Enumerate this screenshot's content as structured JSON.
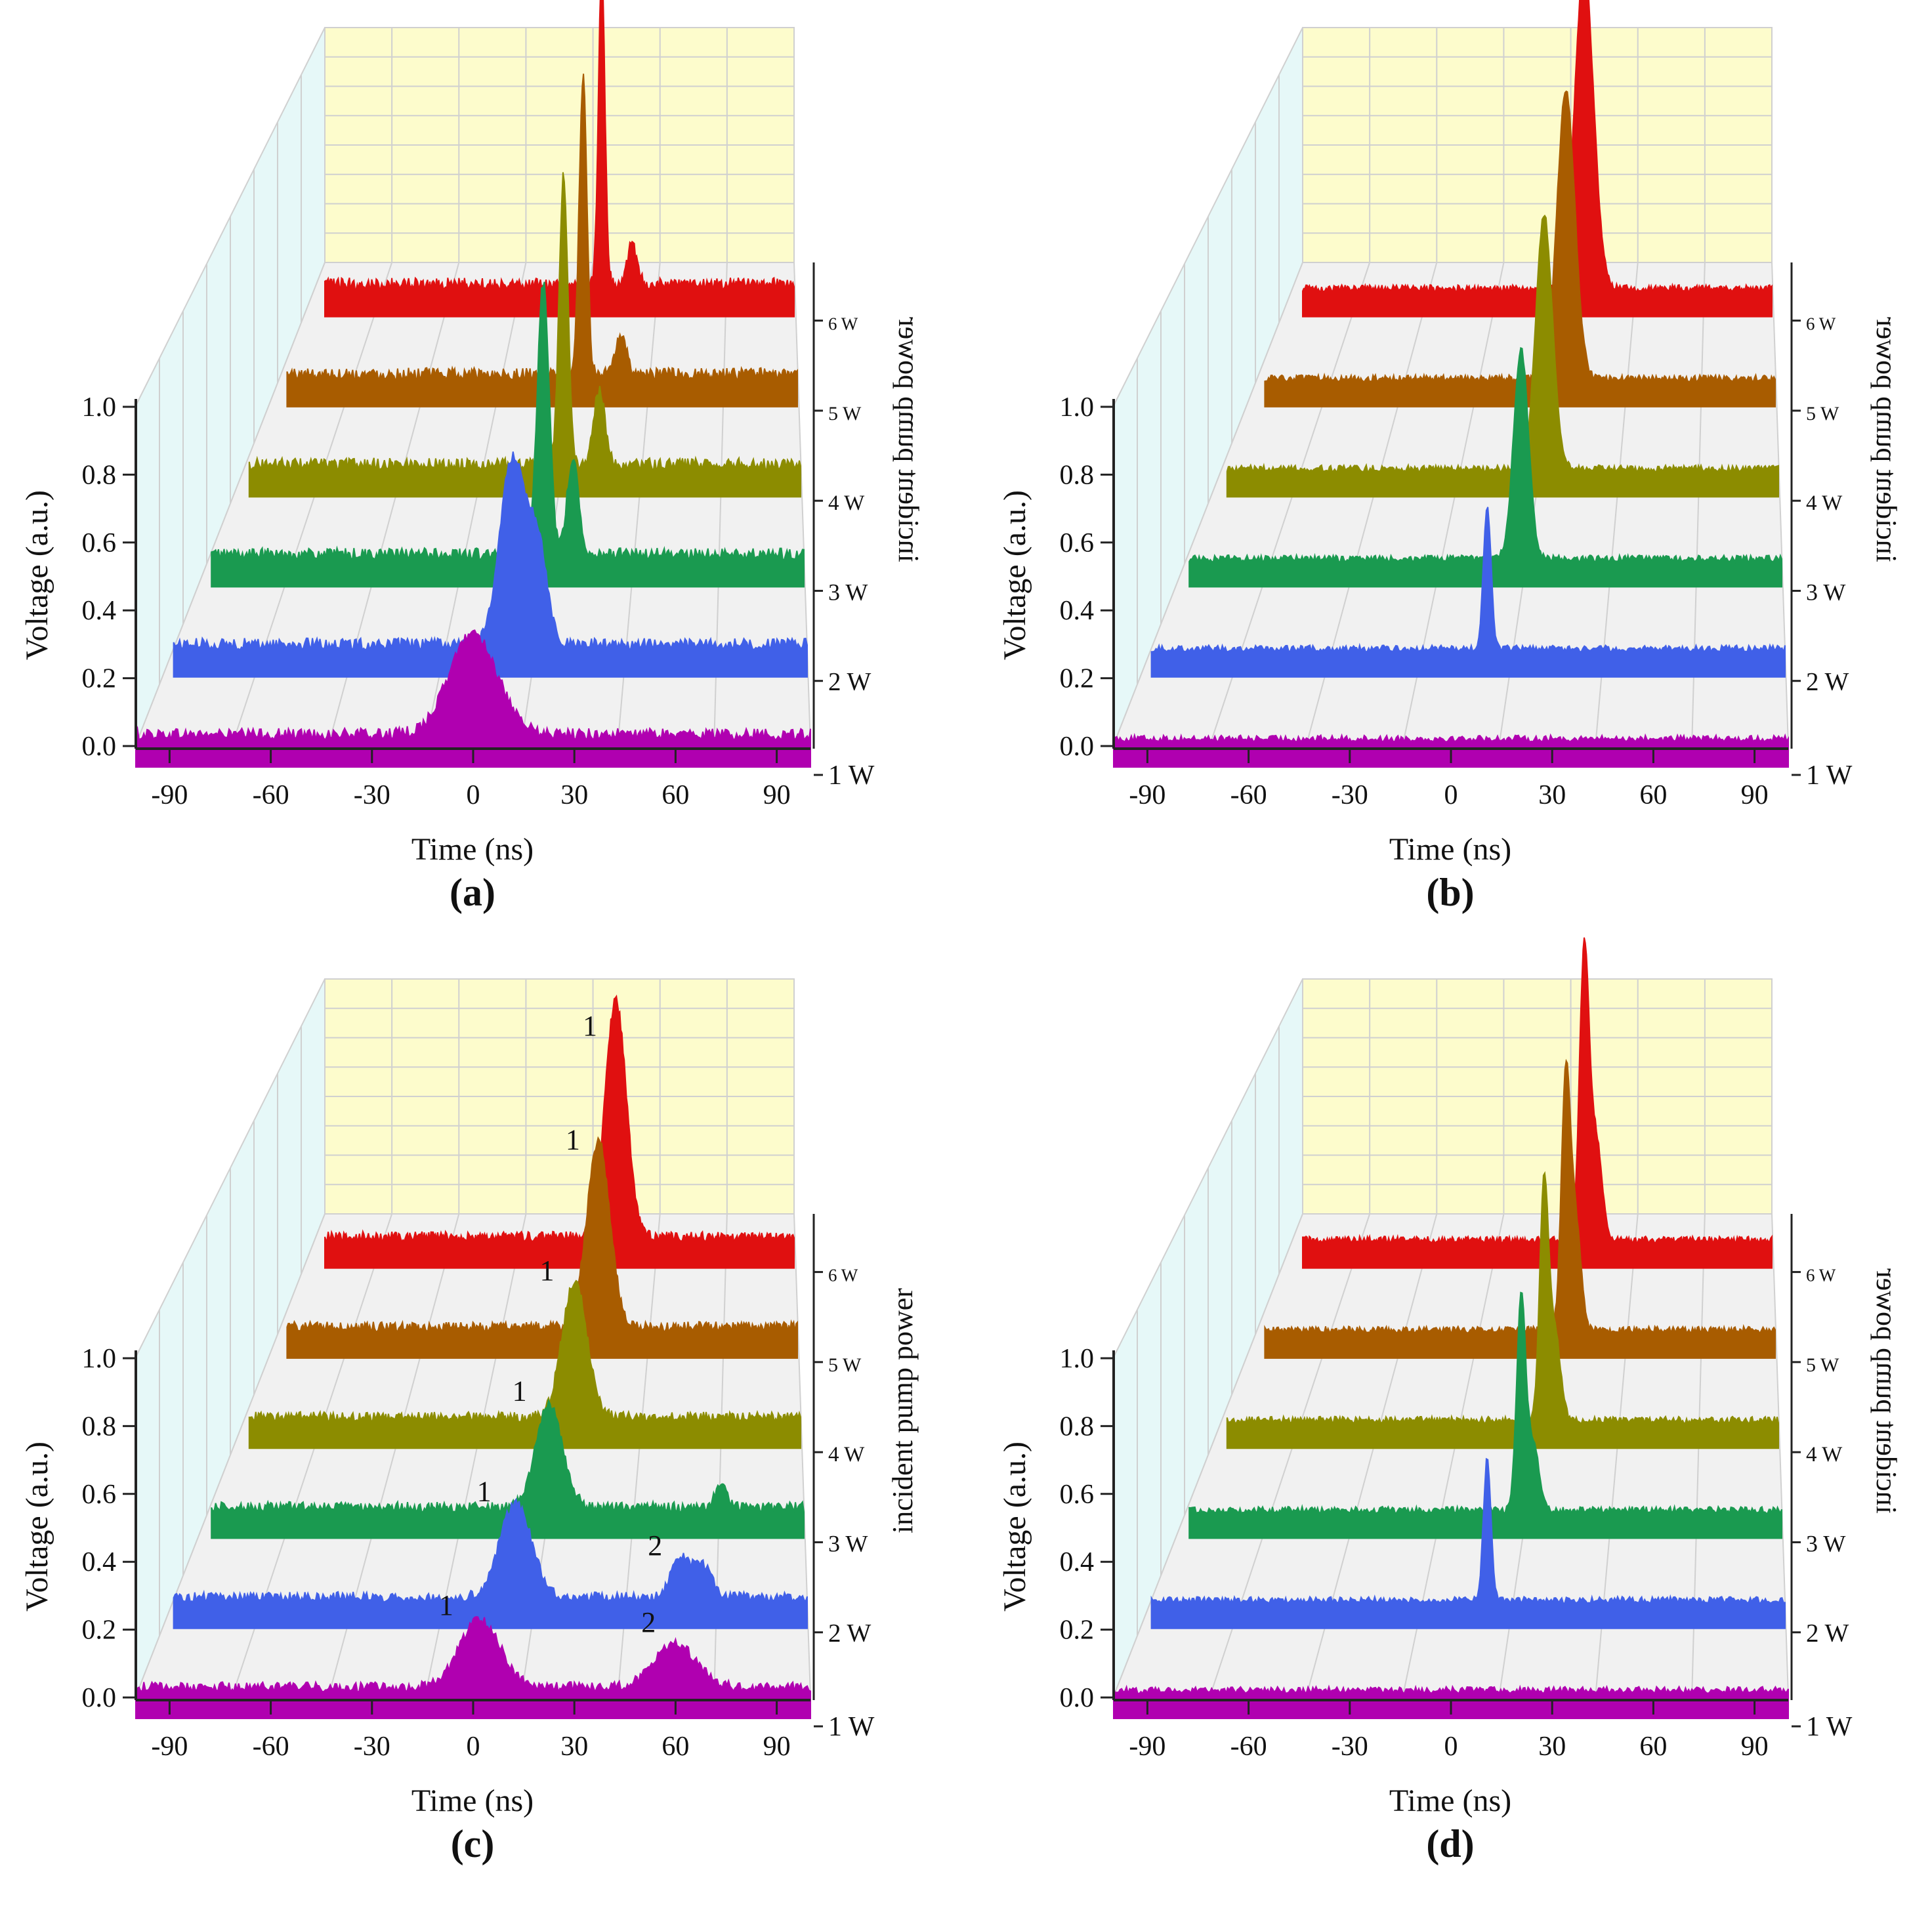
{
  "figure": {
    "colors": {
      "pump_1W": "#b000b0",
      "pump_2W": "#4060e8",
      "pump_3W": "#1a9a50",
      "pump_4W": "#8c8c00",
      "pump_5W": "#a85c00",
      "pump_6W": "#e01010",
      "back_wall": "#fdfccc",
      "side_wall": "#e6f8f8",
      "floor": "#f1f1f1",
      "grid": "#d0d0d0",
      "axis": "#222222"
    }
  },
  "chart_data": [
    {
      "type": "waterfall",
      "panel_label": "(a)",
      "xlabel": "Time (ns)",
      "ylabel": "Voltage (a.u.)",
      "zlabel": "incident pump power",
      "zlabel_style": "mirrored",
      "xlim": [
        -100,
        100
      ],
      "ylim": [
        0,
        1.0
      ],
      "xticks": [
        "-90",
        "-60",
        "-30",
        "0",
        "30",
        "60",
        "90"
      ],
      "yticks": [
        "0.0",
        "0.2",
        "0.4",
        "0.6",
        "0.8",
        "1.0"
      ],
      "z_labels": [
        "1 W",
        "2 W",
        "3 W",
        "4 W",
        "5 W",
        "6 W"
      ],
      "noise_level": 0.035,
      "series": [
        {
          "name": "1 W",
          "pulses": [
            {
              "t": 0,
              "amp": 0.3,
              "width": 7
            }
          ],
          "numbers": []
        },
        {
          "name": "2 W",
          "pulses": [
            {
              "t": 7,
              "amp": 0.55,
              "width": 4
            },
            {
              "t": 15,
              "amp": 0.28,
              "width": 3
            }
          ],
          "numbers": []
        },
        {
          "name": "3 W",
          "pulses": [
            {
              "t": 12,
              "amp": 0.8,
              "width": 2
            },
            {
              "t": 22,
              "amp": 0.28,
              "width": 2
            }
          ],
          "numbers": []
        },
        {
          "name": "4 W",
          "pulses": [
            {
              "t": 14,
              "amp": 0.85,
              "width": 1.6
            },
            {
              "t": 27,
              "amp": 0.22,
              "width": 2
            }
          ],
          "numbers": []
        },
        {
          "name": "5 W",
          "pulses": [
            {
              "t": 16,
              "amp": 0.88,
              "width": 1.5
            },
            {
              "t": 31,
              "amp": 0.12,
              "width": 2
            }
          ],
          "numbers": []
        },
        {
          "name": "6 W",
          "pulses": [
            {
              "t": 18,
              "amp": 0.92,
              "width": 1.4
            },
            {
              "t": 31,
              "amp": 0.12,
              "width": 2
            }
          ],
          "numbers": []
        }
      ]
    },
    {
      "type": "waterfall",
      "panel_label": "(b)",
      "xlabel": "Time (ns)",
      "ylabel": "Voltage (a.u.)",
      "zlabel": "incident pump power",
      "zlabel_style": "mirrored",
      "xlim": [
        -100,
        100
      ],
      "ylim": [
        0,
        1.0
      ],
      "xticks": [
        "-90",
        "-60",
        "-30",
        "0",
        "30",
        "60",
        "90"
      ],
      "yticks": [
        "0.0",
        "0.2",
        "0.4",
        "0.6",
        "0.8",
        "1.0"
      ],
      "z_labels": [
        "1 W",
        "2 W",
        "3 W",
        "4 W",
        "5 W",
        "6 W"
      ],
      "noise_level": 0.02,
      "series": [
        {
          "name": "1 W",
          "pulses": [],
          "numbers": []
        },
        {
          "name": "2 W",
          "pulses": [
            {
              "t": 6,
              "amp": 0.42,
              "width": 1.2
            }
          ],
          "numbers": []
        },
        {
          "name": "3 W",
          "pulses": [
            {
              "t": 12,
              "amp": 0.62,
              "width": 2.5
            }
          ],
          "numbers": []
        },
        {
          "name": "4 W",
          "pulses": [
            {
              "t": 15,
              "amp": 0.75,
              "width": 3
            }
          ],
          "numbers": []
        },
        {
          "name": "5 W",
          "pulses": [
            {
              "t": 18,
              "amp": 0.85,
              "width": 3.5
            }
          ],
          "numbers": []
        },
        {
          "name": "6 W",
          "pulses": [
            {
              "t": 20,
              "amp": 0.95,
              "width": 4
            }
          ],
          "numbers": []
        }
      ]
    },
    {
      "type": "waterfall",
      "panel_label": "(c)",
      "xlabel": "Time (ns)",
      "ylabel": "Voltage (a.u.)",
      "zlabel": "incident pump power",
      "zlabel_style": "normal",
      "xlim": [
        -100,
        100
      ],
      "ylim": [
        0,
        1.0
      ],
      "xticks": [
        "-90",
        "-60",
        "-30",
        "0",
        "30",
        "60",
        "90"
      ],
      "yticks": [
        "0.0",
        "0.2",
        "0.4",
        "0.6",
        "0.8",
        "1.0"
      ],
      "z_labels": [
        "1 W",
        "2 W",
        "3 W",
        "4 W",
        "5 W",
        "6 W"
      ],
      "noise_level": 0.03,
      "series": [
        {
          "name": "1 W",
          "pulses": [
            {
              "t": 2,
              "amp": 0.2,
              "width": 6
            },
            {
              "t": 60,
              "amp": 0.13,
              "width": 6
            }
          ],
          "numbers": [
            {
              "text": "1",
              "t": -8,
              "v": 0.24
            },
            {
              "text": "2",
              "t": 52,
              "v": 0.19
            }
          ]
        },
        {
          "name": "2 W",
          "pulses": [
            {
              "t": 8,
              "amp": 0.28,
              "width": 5
            },
            {
              "t": 60,
              "amp": 0.11,
              "width": 3
            },
            {
              "t": 67,
              "amp": 0.09,
              "width": 3
            }
          ],
          "numbers": [
            {
              "text": "1",
              "t": -2,
              "v": 0.31
            },
            {
              "text": "2",
              "t": 52,
              "v": 0.15
            }
          ]
        },
        {
          "name": "3 W",
          "pulses": [
            {
              "t": 14,
              "amp": 0.3,
              "width": 4.5
            },
            {
              "t": 72,
              "amp": 0.06,
              "width": 2
            }
          ],
          "numbers": [
            {
              "text": "1",
              "t": 4,
              "v": 0.34
            }
          ]
        },
        {
          "name": "4 W",
          "pulses": [
            {
              "t": 18,
              "amp": 0.4,
              "width": 4.5
            }
          ],
          "numbers": [
            {
              "text": "1",
              "t": 8,
              "v": 0.43
            }
          ]
        },
        {
          "name": "5 W",
          "pulses": [
            {
              "t": 22,
              "amp": 0.55,
              "width": 4.5
            }
          ],
          "numbers": [
            {
              "text": "1",
              "t": 12,
              "v": 0.55
            }
          ]
        },
        {
          "name": "6 W",
          "pulses": [
            {
              "t": 24,
              "amp": 0.7,
              "width": 4.5
            }
          ],
          "numbers": [
            {
              "text": "1",
              "t": 13,
              "v": 0.62
            }
          ]
        }
      ]
    },
    {
      "type": "waterfall",
      "panel_label": "(d)",
      "xlabel": "Time (ns)",
      "ylabel": "Voltage (a.u.)",
      "zlabel": "incident pump power",
      "zlabel_style": "mirrored",
      "xlim": [
        -100,
        100
      ],
      "ylim": [
        0,
        1.0
      ],
      "xticks": [
        "-90",
        "-60",
        "-30",
        "0",
        "30",
        "60",
        "90"
      ],
      "yticks": [
        "0.0",
        "0.2",
        "0.4",
        "0.6",
        "0.8",
        "1.0"
      ],
      "z_labels": [
        "1 W",
        "2 W",
        "3 W",
        "4 W",
        "5 W",
        "6 W"
      ],
      "noise_level": 0.02,
      "series": [
        {
          "name": "1 W",
          "pulses": [],
          "numbers": []
        },
        {
          "name": "2 W",
          "pulses": [
            {
              "t": 6,
              "amp": 0.42,
              "width": 1.2
            }
          ],
          "numbers": []
        },
        {
          "name": "3 W",
          "pulses": [
            {
              "t": 12,
              "amp": 0.62,
              "width": 1.5
            },
            {
              "t": 16,
              "amp": 0.2,
              "width": 2
            }
          ],
          "numbers": []
        },
        {
          "name": "4 W",
          "pulses": [
            {
              "t": 15,
              "amp": 0.7,
              "width": 1.6
            },
            {
              "t": 19,
              "amp": 0.25,
              "width": 2
            }
          ],
          "numbers": []
        },
        {
          "name": "5 W",
          "pulses": [
            {
              "t": 18,
              "amp": 0.75,
              "width": 1.8
            },
            {
              "t": 22,
              "amp": 0.3,
              "width": 2
            }
          ],
          "numbers": []
        },
        {
          "name": "6 W",
          "pulses": [
            {
              "t": 20,
              "amp": 0.85,
              "width": 2
            },
            {
              "t": 25,
              "amp": 0.3,
              "width": 2.5
            }
          ],
          "numbers": []
        }
      ]
    }
  ]
}
